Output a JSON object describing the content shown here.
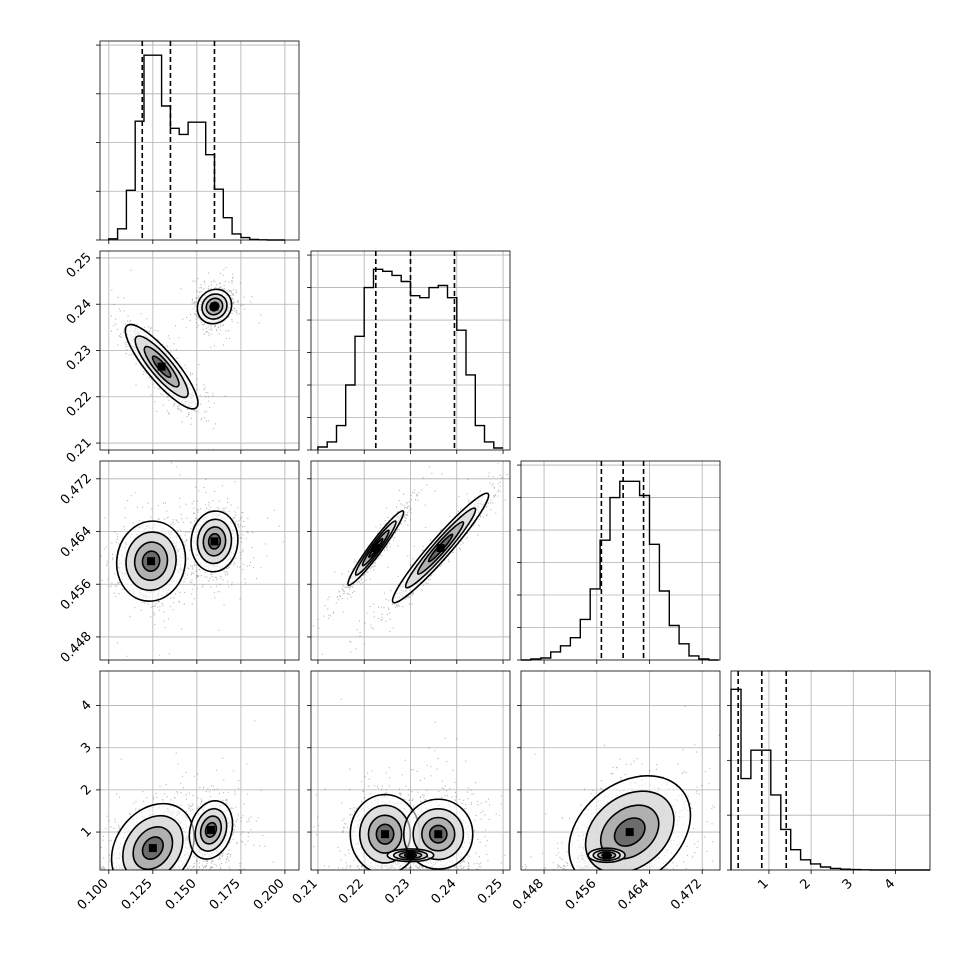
{
  "chart_data": {
    "type": "corner",
    "grid": true,
    "parameters": [
      {
        "range": [
          0.095,
          0.208
        ],
        "ticks": [
          0.1,
          0.125,
          0.15,
          0.175,
          0.2
        ],
        "tick_labels": [
          "0.100",
          "0.125",
          "0.150",
          "0.175",
          "0.200"
        ],
        "quantiles": [
          0.119,
          0.135,
          0.16
        ]
      },
      {
        "range": [
          0.2085,
          0.2515
        ],
        "ticks": [
          0.21,
          0.22,
          0.23,
          0.24,
          0.25
        ],
        "tick_labels": [
          "0.21",
          "0.22",
          "0.23",
          "0.24",
          "0.25"
        ],
        "quantiles": [
          0.2225,
          0.23,
          0.2395
        ]
      },
      {
        "range": [
          0.4445,
          0.4747
        ],
        "ticks": [
          0.448,
          0.456,
          0.464,
          0.472
        ],
        "tick_labels": [
          "0.448",
          "0.456",
          "0.464",
          "0.472"
        ],
        "quantiles": [
          0.4567,
          0.46,
          0.4631
        ]
      },
      {
        "range": [
          0.1,
          4.82
        ],
        "ticks": [
          1,
          2,
          3,
          4
        ],
        "tick_labels": [
          "1",
          "2",
          "3",
          "4"
        ],
        "quantiles": [
          0.27,
          0.83,
          1.41
        ]
      }
    ],
    "histograms": [
      {
        "param": 0,
        "ylim": [
          0,
          0.98
        ],
        "yticks": [
          0,
          0.24,
          0.48,
          0.72,
          0.96
        ],
        "edges": [
          0.1,
          0.105,
          0.11,
          0.115,
          0.12,
          0.125,
          0.13,
          0.135,
          0.14,
          0.145,
          0.15,
          0.155,
          0.16,
          0.165,
          0.17,
          0.175,
          0.18,
          0.185,
          0.19,
          0.195,
          0.2
        ],
        "counts": [
          0.006,
          0.055,
          0.245,
          0.585,
          0.91,
          0.91,
          0.66,
          0.55,
          0.52,
          0.58,
          0.58,
          0.42,
          0.25,
          0.11,
          0.03,
          0.012,
          0.003,
          0.001,
          0,
          0
        ]
      },
      {
        "param": 1,
        "ylim": [
          0,
          0.98
        ],
        "yticks": [
          0,
          0.16,
          0.32,
          0.48,
          0.64,
          0.8,
          0.96
        ],
        "edges": [
          0.21,
          0.212,
          0.214,
          0.216,
          0.218,
          0.22,
          0.222,
          0.224,
          0.226,
          0.228,
          0.23,
          0.232,
          0.234,
          0.236,
          0.238,
          0.24,
          0.242,
          0.244,
          0.246,
          0.248,
          0.25
        ],
        "counts": [
          0.015,
          0.04,
          0.12,
          0.32,
          0.56,
          0.8,
          0.89,
          0.88,
          0.86,
          0.83,
          0.76,
          0.75,
          0.8,
          0.81,
          0.75,
          0.59,
          0.37,
          0.12,
          0.04,
          0.01
        ]
      },
      {
        "param": 2,
        "ylim": [
          0,
          0.98
        ],
        "yticks": [
          0,
          0.16,
          0.32,
          0.48,
          0.64,
          0.8,
          0.96
        ],
        "edges": [
          0.4445,
          0.446,
          0.4475,
          0.449,
          0.4505,
          0.452,
          0.4535,
          0.455,
          0.4565,
          0.458,
          0.4595,
          0.461,
          0.4625,
          0.464,
          0.4655,
          0.467,
          0.4685,
          0.47,
          0.4715,
          0.473,
          0.4745
        ],
        "counts": [
          0,
          0.005,
          0.01,
          0.04,
          0.07,
          0.11,
          0.2,
          0.35,
          0.59,
          0.8,
          0.88,
          0.88,
          0.81,
          0.57,
          0.34,
          0.17,
          0.08,
          0.02,
          0.005,
          0
        ]
      },
      {
        "param": 3,
        "ylim": [
          0,
          0.98
        ],
        "yticks": [
          0,
          0.27,
          0.54,
          0.81
        ],
        "edges": [
          0.1,
          0.336,
          0.572,
          0.808,
          1.044,
          1.28,
          1.516,
          1.752,
          1.988,
          2.224,
          2.46,
          2.696,
          2.932,
          3.168,
          3.404,
          3.64,
          3.876,
          4.112,
          4.348,
          4.584,
          4.82
        ],
        "counts": [
          0.89,
          0.45,
          0.59,
          0.59,
          0.37,
          0.2,
          0.1,
          0.05,
          0.03,
          0.015,
          0.008,
          0.004,
          0.002,
          0.001,
          0,
          0,
          0,
          0,
          0,
          0
        ]
      }
    ],
    "panels_2d": [
      {
        "x": 0,
        "y": 1,
        "clusters": [
          {
            "kind": "ellipse",
            "cx": 0.13,
            "cy": 0.2265,
            "sx": 0.0095,
            "sy": 0.0042,
            "rho": -0.86,
            "weight": 0.6
          },
          {
            "kind": "ellipse",
            "cx": 0.16,
            "cy": 0.2395,
            "sx": 0.0055,
            "sy": 0.0021,
            "rho": 0.1,
            "weight": 0.4
          }
        ]
      },
      {
        "x": 0,
        "y": 2,
        "clusters": [
          {
            "kind": "ellipse",
            "cx": 0.124,
            "cy": 0.4595,
            "sx": 0.009,
            "sy": 0.0028,
            "rho": 0.05,
            "weight": 0.6
          },
          {
            "kind": "ellipse",
            "cx": 0.16,
            "cy": 0.4625,
            "sx": 0.0075,
            "sy": 0.0026,
            "rho": 0.05,
            "weight": 0.4
          }
        ]
      },
      {
        "x": 0,
        "y": 3,
        "clusters": [
          {
            "kind": "ellipse",
            "cx": 0.125,
            "cy": 0.62,
            "sx": 0.01,
            "sy": 0.45,
            "rho": 0.25,
            "weight": 0.7
          },
          {
            "kind": "ellipse",
            "cx": 0.158,
            "cy": 1.05,
            "sx": 0.008,
            "sy": 0.45,
            "rho": 0.2,
            "weight": 0.3
          }
        ]
      },
      {
        "x": 1,
        "y": 2,
        "clusters": [
          {
            "kind": "ellipse",
            "cx": 0.2225,
            "cy": 0.4615,
            "sx": 0.0032,
            "sy": 0.003,
            "rho": 0.96,
            "weight": 0.45
          },
          {
            "kind": "ellipse",
            "cx": 0.2365,
            "cy": 0.4615,
            "sx": 0.005,
            "sy": 0.004,
            "rho": 0.96,
            "weight": 0.55
          }
        ]
      },
      {
        "x": 1,
        "y": 3,
        "clusters": [
          {
            "kind": "ellipse",
            "cx": 0.2245,
            "cy": 0.95,
            "sx": 0.004,
            "sy": 0.5,
            "rho": 0.0,
            "weight": 0.45
          },
          {
            "kind": "ellipse",
            "cx": 0.236,
            "cy": 0.95,
            "sx": 0.0045,
            "sy": 0.5,
            "rho": 0.0,
            "weight": 0.35
          },
          {
            "kind": "ellipse",
            "cx": 0.23,
            "cy": 0.45,
            "sx": 0.004,
            "sy": 0.12,
            "rho": 0.0,
            "weight": 0.2
          }
        ]
      },
      {
        "x": 2,
        "y": 3,
        "clusters": [
          {
            "kind": "ellipse",
            "cx": 0.461,
            "cy": 1.0,
            "sx": 0.0038,
            "sy": 0.55,
            "rho": 0.3,
            "weight": 0.75
          },
          {
            "kind": "ellipse",
            "cx": 0.4575,
            "cy": 0.45,
            "sx": 0.002,
            "sy": 0.12,
            "rho": 0.0,
            "weight": 0.25
          }
        ]
      }
    ]
  }
}
